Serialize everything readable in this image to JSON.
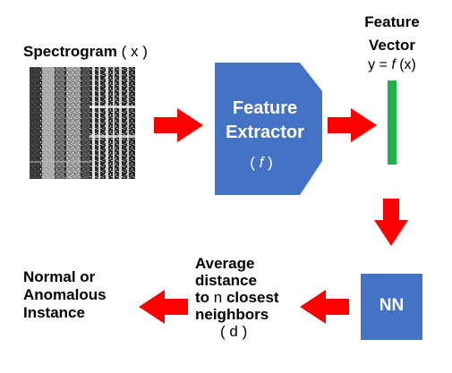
{
  "spectrogram": {
    "label": "Spectrogram",
    "var_open": "( ",
    "var": "x",
    "var_close": " )"
  },
  "extractor": {
    "line1": "Feature",
    "line2": "Extractor",
    "fn_open": "( ",
    "fn": "f",
    "fn_close": " )",
    "fill": "#4472c4"
  },
  "feature_vector": {
    "line1": "Feature",
    "line2": "Vector",
    "eq_prefix": "y = ",
    "eq_fn": "f",
    "eq_suffix": " (x)",
    "bar_color": "#1fb24a"
  },
  "nn": {
    "label": "NN",
    "fill": "#4472c4"
  },
  "distance": {
    "line1": "Average",
    "line2": "distance",
    "line3_prefix": "to ",
    "line3_n": "n",
    "line3_suffix": " closest",
    "line4": "neighbors",
    "var_open": "( ",
    "var": "d",
    "var_close": " )"
  },
  "result": {
    "line1": "Normal or",
    "line2": "Anomalous",
    "line3": "Instance"
  },
  "arrow_color": "#ff0000"
}
